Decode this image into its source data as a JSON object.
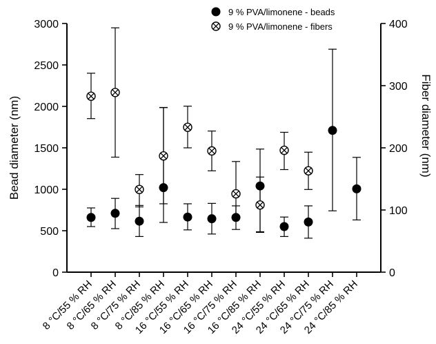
{
  "chart_data": {
    "type": "scatter",
    "ylabel": "Bead diameter (nm)",
    "y2label": "Fiber diameter (nm)",
    "ylim": [
      0,
      3000
    ],
    "y2lim": [
      0,
      400
    ],
    "yticks": [
      "0",
      "500",
      "1000",
      "1500",
      "2000",
      "2500",
      "3000"
    ],
    "y2ticks": [
      "0",
      "100",
      "200",
      "300",
      "400"
    ],
    "categories": [
      "8 °C/55 % RH",
      "8 °C/65 % RH",
      "8 °C/75 % RH",
      "8 °C/85 % RH",
      "16 °C/55 % RH",
      "16 °C/65 % RH",
      "16 °C/75 % RH",
      "16 °C/85 % RH",
      "24 °C/55 % RH",
      "24 °C/65 % RH",
      "24 °C/75 % RH",
      "24 °C/85 % RH"
    ],
    "legend_position": "top-right",
    "series": [
      {
        "name": "9 % PVA/limonene - beads",
        "axis": "left",
        "marker": "filled-circle",
        "values": [
          660,
          710,
          615,
          1020,
          665,
          645,
          660,
          1040,
          550,
          605,
          1710,
          1005
        ],
        "err_low": [
          550,
          525,
          430,
          600,
          510,
          460,
          515,
          480,
          430,
          410,
          740,
          630
        ],
        "err_high": [
          775,
          890,
          805,
          1985,
          825,
          830,
          800,
          1485,
          665,
          800,
          2690,
          1385
        ]
      },
      {
        "name": "9 % PVA/limonene - fibers",
        "axis": "right",
        "marker": "crossed-circle",
        "values": [
          283,
          289,
          133,
          187,
          233,
          195,
          126,
          108,
          196,
          163,
          null,
          null
        ],
        "err_low": [
          247,
          185,
          105,
          110,
          200,
          163,
          87,
          65,
          165,
          133,
          null,
          null
        ],
        "err_high": [
          320,
          393,
          157,
          265,
          267,
          227,
          178,
          153,
          225,
          193,
          null,
          null
        ]
      }
    ]
  }
}
